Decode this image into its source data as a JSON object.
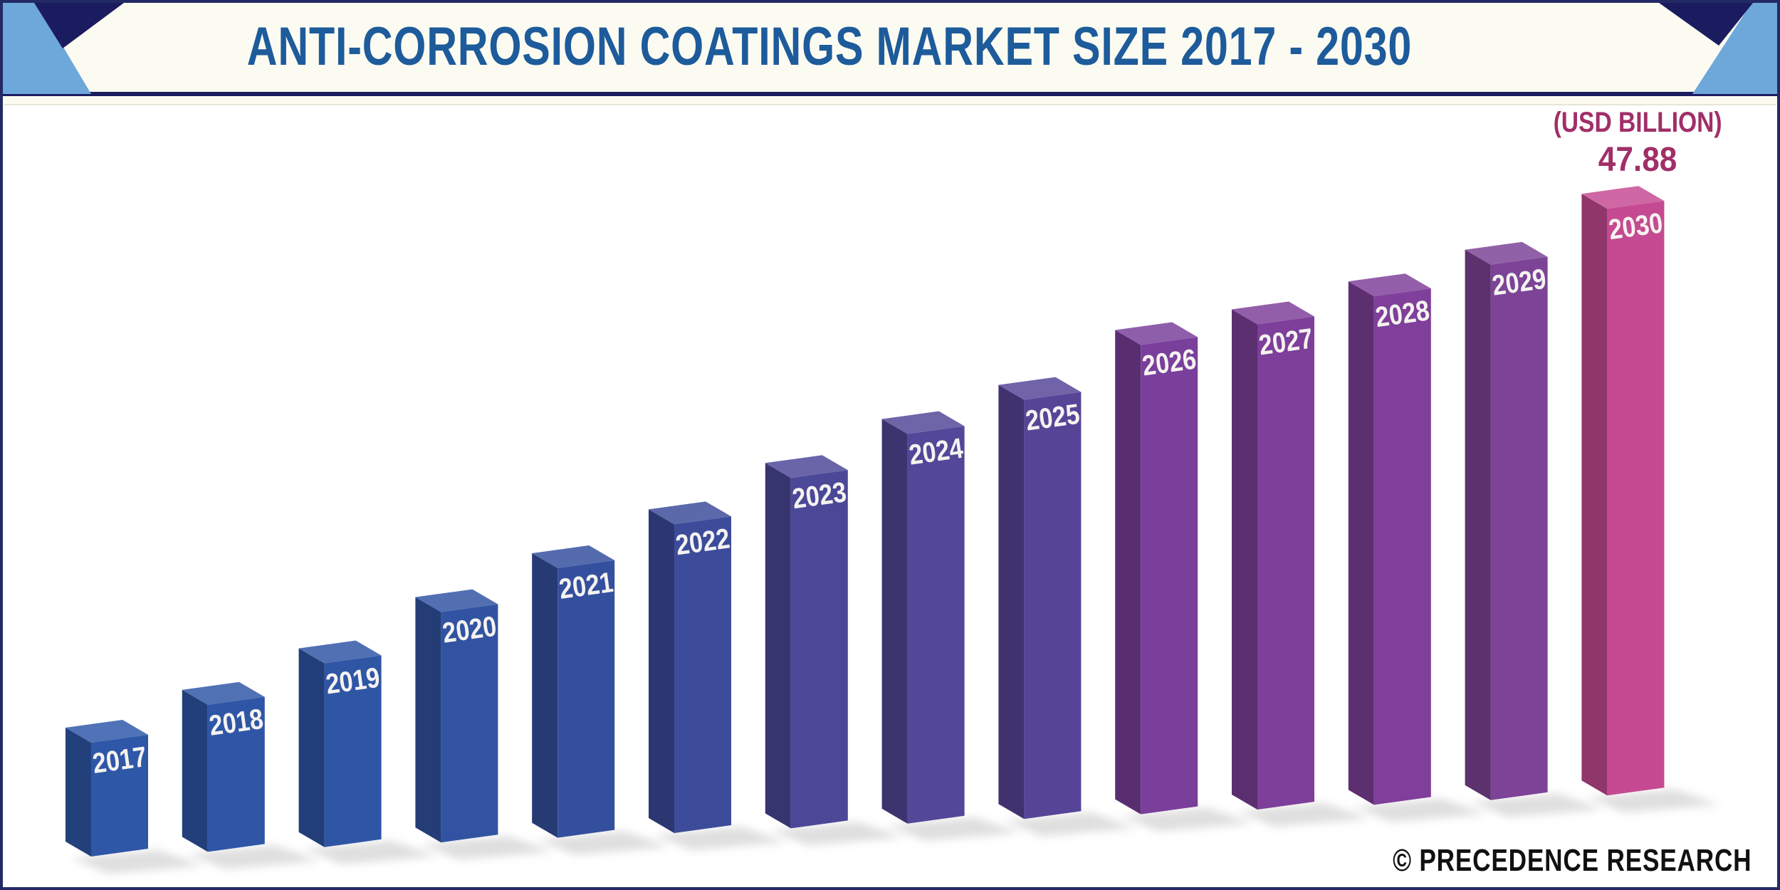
{
  "colors": {
    "navy": "#1b1b60",
    "frame": "#232a63",
    "light_blue": "#6ea7da",
    "title": "#1d5b9b",
    "annotation": "#a02f68",
    "credit": "#111111",
    "header_bg": "#fcfbf2",
    "panel_bg": "#ffffff"
  },
  "header": {
    "title": "ANTI-CORROSION COATINGS MARKET SIZE 2017 - 2030"
  },
  "annotation": {
    "unit_label": "(USD BILLION)",
    "value_label": "47.88"
  },
  "footer": {
    "credit": "© PRECEDENCE RESEARCH"
  },
  "chart_data": {
    "type": "bar",
    "subtype": "3d-column",
    "title": "Anti-Corrosion Coatings Market Size 2017 - 2030",
    "unit": "USD Billion",
    "categories": [
      "2017",
      "2018",
      "2019",
      "2020",
      "2021",
      "2022",
      "2023",
      "2024",
      "2025",
      "2026",
      "2027",
      "2028",
      "2029",
      "2030"
    ],
    "values": [
      9.3,
      12.0,
      15.0,
      18.8,
      22.0,
      25.2,
      28.6,
      31.8,
      34.2,
      38.3,
      39.6,
      41.5,
      43.7,
      47.88
    ],
    "labeled_value_2030": "47.88",
    "bar_colors": [
      "#2f57a8",
      "#2f56a6",
      "#2f55a5",
      "#3153a2",
      "#344f9e",
      "#3c4c9b",
      "#4c4898",
      "#524798",
      "#564597",
      "#7a3f9b",
      "#7d3f99",
      "#7f3f9a",
      "#7c4396",
      "#c54a91"
    ],
    "bar_label_color": "#f5f3f0",
    "ylim": [
      0,
      50
    ],
    "grid": false,
    "legend": false
  }
}
